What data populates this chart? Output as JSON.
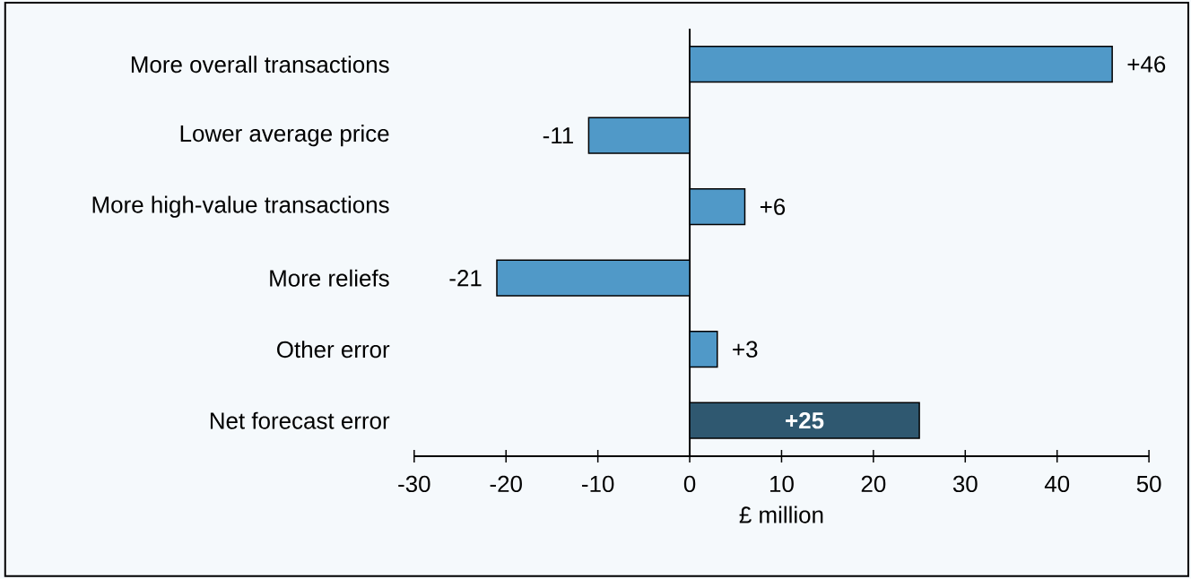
{
  "chart_data": {
    "type": "bar",
    "orientation": "horizontal",
    "xlabel": "£ million",
    "categories": [
      "More overall transactions",
      "Lower average price",
      "More high-value transactions",
      "More reliefs",
      "Other error",
      "Net forecast error"
    ],
    "values": [
      46,
      -11,
      6,
      -21,
      3,
      25
    ],
    "colors": [
      "#5099c8",
      "#5099c8",
      "#5099c8",
      "#5099c8",
      "#5099c8",
      "#2f5870"
    ],
    "value_labels": [
      "+46",
      "-11",
      "+6",
      "-21",
      "+3",
      "+25"
    ],
    "xlim": [
      -30,
      50
    ],
    "xticks": [
      -30,
      -20,
      -10,
      0,
      10,
      20,
      30,
      40,
      50
    ]
  }
}
